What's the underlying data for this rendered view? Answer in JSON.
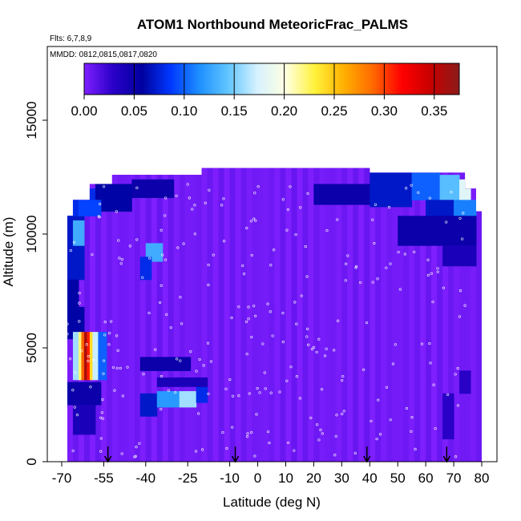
{
  "chart_data": {
    "type": "heatmap",
    "title": "ATOM1 Northbound MeteoricFrac_PALMS",
    "flights_label": "Flts: 6,7,8,9",
    "dates_label": "MMDD: 0812,0815,0817,0820",
    "xlabel": "Latitude (deg N)",
    "ylabel": "Altitude (m)",
    "xlim": [
      -70,
      80
    ],
    "ylim": [
      0,
      17500
    ],
    "xticks": [
      -70,
      -55,
      -40,
      -25,
      -10,
      0,
      10,
      20,
      30,
      40,
      50,
      60,
      70,
      80
    ],
    "xticklabels": [
      "-70",
      "-55",
      "-40",
      "-25",
      "-10",
      "0",
      "10",
      "20",
      "30",
      "40",
      "50",
      "60",
      "70",
      "80"
    ],
    "yticks": [
      0,
      5000,
      10000,
      15000
    ],
    "yticklabels": [
      "0",
      "5000",
      "10000",
      "15000"
    ],
    "colorbar": {
      "range": [
        0,
        0.375
      ],
      "ticks": [
        0.0,
        0.05,
        0.1,
        0.15,
        0.2,
        0.25,
        0.3,
        0.35
      ],
      "ticklabels": [
        "0.00",
        "0.05",
        "0.10",
        "0.15",
        "0.20",
        "0.25",
        "0.30",
        "0.35"
      ],
      "colors": [
        "#7f1fff",
        "#2a00c8",
        "#00009e",
        "#0038ff",
        "#1e90ff",
        "#62c6ff",
        "#d6f2ff",
        "#ffffe0",
        "#fff23a",
        "#ffb000",
        "#ff6a00",
        "#ff0000",
        "#c80000",
        "#8b1a1a"
      ]
    },
    "background_value": 0.0,
    "coverage_top": [
      [
        -68,
        10800
      ],
      [
        -66,
        11500
      ],
      [
        -60,
        12200
      ],
      [
        -52,
        12600
      ],
      [
        -40,
        12600
      ],
      [
        -30,
        12600
      ],
      [
        -20,
        12900
      ],
      [
        -10,
        12900
      ],
      [
        0,
        12900
      ],
      [
        10,
        12900
      ],
      [
        20,
        12900
      ],
      [
        30,
        12900
      ],
      [
        36,
        12900
      ],
      [
        40,
        12700
      ],
      [
        50,
        12700
      ],
      [
        60,
        12700
      ],
      [
        70,
        12700
      ],
      [
        74,
        12000
      ],
      [
        78,
        11000
      ],
      [
        80,
        10600
      ]
    ],
    "cells": [
      {
        "lat": [
          -68,
          -62
        ],
        "alt": [
          8000,
          11000
        ],
        "v": 0.07
      },
      {
        "lat": [
          -68,
          -64
        ],
        "alt": [
          6500,
          8000
        ],
        "v": 0.06
      },
      {
        "lat": [
          -68,
          -58
        ],
        "alt": [
          10800,
          12000
        ],
        "v": 0.08
      },
      {
        "lat": [
          -58,
          -45
        ],
        "alt": [
          11000,
          12200
        ],
        "v": 0.06
      },
      {
        "lat": [
          -45,
          -30
        ],
        "alt": [
          11600,
          12400
        ],
        "v": 0.05
      },
      {
        "lat": [
          -66,
          -62
        ],
        "alt": [
          9500,
          10600
        ],
        "v": 0.13
      },
      {
        "lat": [
          -64,
          -56
        ],
        "alt": [
          10800,
          11500
        ],
        "v": 0.09
      },
      {
        "lat": [
          -40,
          -34
        ],
        "alt": [
          8800,
          9600
        ],
        "v": 0.13
      },
      {
        "lat": [
          -42,
          -38
        ],
        "alt": [
          8000,
          9000
        ],
        "v": 0.08
      },
      {
        "lat": [
          -68,
          -62
        ],
        "alt": [
          5400,
          6800
        ],
        "v": 0.06
      },
      {
        "lat": [
          -66,
          -64
        ],
        "alt": [
          3600,
          5700
        ],
        "v": 0.16
      },
      {
        "lat": [
          -64,
          -63
        ],
        "alt": [
          3600,
          5700
        ],
        "v": 0.22
      },
      {
        "lat": [
          -63,
          -62
        ],
        "alt": [
          3600,
          5700
        ],
        "v": 0.29
      },
      {
        "lat": [
          -62,
          -61
        ],
        "alt": [
          3600,
          5700
        ],
        "v": 0.36
      },
      {
        "lat": [
          -61,
          -60
        ],
        "alt": [
          3600,
          5700
        ],
        "v": 0.31
      },
      {
        "lat": [
          -60,
          -59
        ],
        "alt": [
          3600,
          5700
        ],
        "v": 0.24
      },
      {
        "lat": [
          -59,
          -57
        ],
        "alt": [
          3600,
          5700
        ],
        "v": 0.17
      },
      {
        "lat": [
          -57,
          -54
        ],
        "alt": [
          3600,
          5700
        ],
        "v": 0.1
      },
      {
        "lat": [
          -68,
          -56
        ],
        "alt": [
          2500,
          3500
        ],
        "v": 0.05
      },
      {
        "lat": [
          -66,
          -58
        ],
        "alt": [
          1200,
          2500
        ],
        "v": 0.04
      },
      {
        "lat": [
          -42,
          -36
        ],
        "alt": [
          2000,
          3000
        ],
        "v": 0.07
      },
      {
        "lat": [
          -36,
          -28
        ],
        "alt": [
          2400,
          3100
        ],
        "v": 0.12
      },
      {
        "lat": [
          -28,
          -22
        ],
        "alt": [
          2400,
          3100
        ],
        "v": 0.16
      },
      {
        "lat": [
          -22,
          -18
        ],
        "alt": [
          2600,
          3300
        ],
        "v": 0.08
      },
      {
        "lat": [
          -36,
          -18
        ],
        "alt": [
          3300,
          3700
        ],
        "v": 0.04
      },
      {
        "lat": [
          -42,
          -24
        ],
        "alt": [
          4000,
          4600
        ],
        "v": 0.05
      },
      {
        "lat": [
          20,
          40
        ],
        "alt": [
          11300,
          12200
        ],
        "v": 0.05
      },
      {
        "lat": [
          40,
          55
        ],
        "alt": [
          11200,
          12700
        ],
        "v": 0.07
      },
      {
        "lat": [
          55,
          65
        ],
        "alt": [
          11500,
          12700
        ],
        "v": 0.1
      },
      {
        "lat": [
          65,
          72
        ],
        "alt": [
          11500,
          12600
        ],
        "v": 0.14
      },
      {
        "lat": [
          72,
          76
        ],
        "alt": [
          11500,
          12400
        ],
        "v": 0.18
      },
      {
        "lat": [
          60,
          70
        ],
        "alt": [
          10800,
          11500
        ],
        "v": 0.07
      },
      {
        "lat": [
          70,
          78
        ],
        "alt": [
          10800,
          11500
        ],
        "v": 0.11
      },
      {
        "lat": [
          50,
          78
        ],
        "alt": [
          9500,
          10800
        ],
        "v": 0.05
      },
      {
        "lat": [
          66,
          78
        ],
        "alt": [
          8600,
          9500
        ],
        "v": 0.04
      },
      {
        "lat": [
          66,
          70
        ],
        "alt": [
          1000,
          3000
        ],
        "v": 0.03
      },
      {
        "lat": [
          72,
          76
        ],
        "alt": [
          3000,
          4000
        ],
        "v": 0.03
      }
    ],
    "arrows_lat": [
      -53.5,
      -8,
      39,
      67.5
    ]
  }
}
